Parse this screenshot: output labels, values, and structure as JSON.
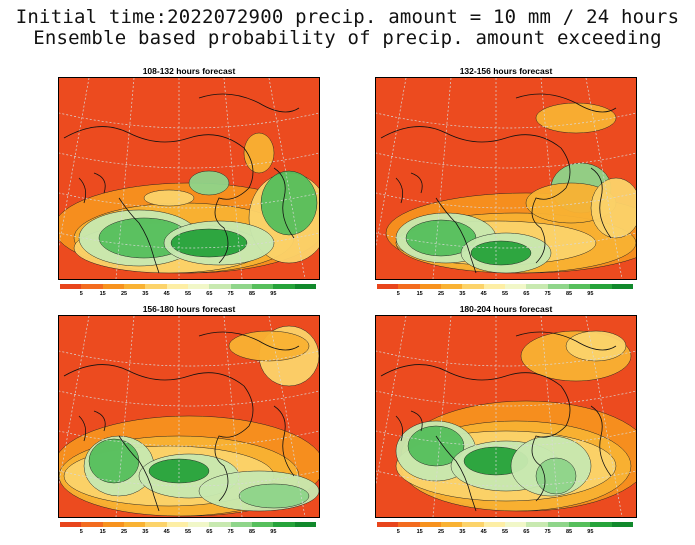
{
  "title_line1": "Initial time:2022072900 precip. amount = 10 mm / 24 hours",
  "title_line2": "Ensemble based probability of precip. amount exceeding",
  "panels": [
    {
      "title": "108-132 hours forecast"
    },
    {
      "title": "132-156 hours forecast"
    },
    {
      "title": "156-180 hours forecast"
    },
    {
      "title": "180-204 hours forecast"
    }
  ],
  "colorbar": {
    "colors": [
      "#e8451c",
      "#f36b1f",
      "#f7921e",
      "#f9b233",
      "#fcd36a",
      "#fdeea5",
      "#f1f7c8",
      "#c8e9b0",
      "#8fd58a",
      "#56bf5c",
      "#26a33b",
      "#11892c"
    ],
    "labels": [
      "5",
      "15",
      "25",
      "35",
      "45",
      "55",
      "65",
      "75",
      "85",
      "95"
    ]
  }
}
